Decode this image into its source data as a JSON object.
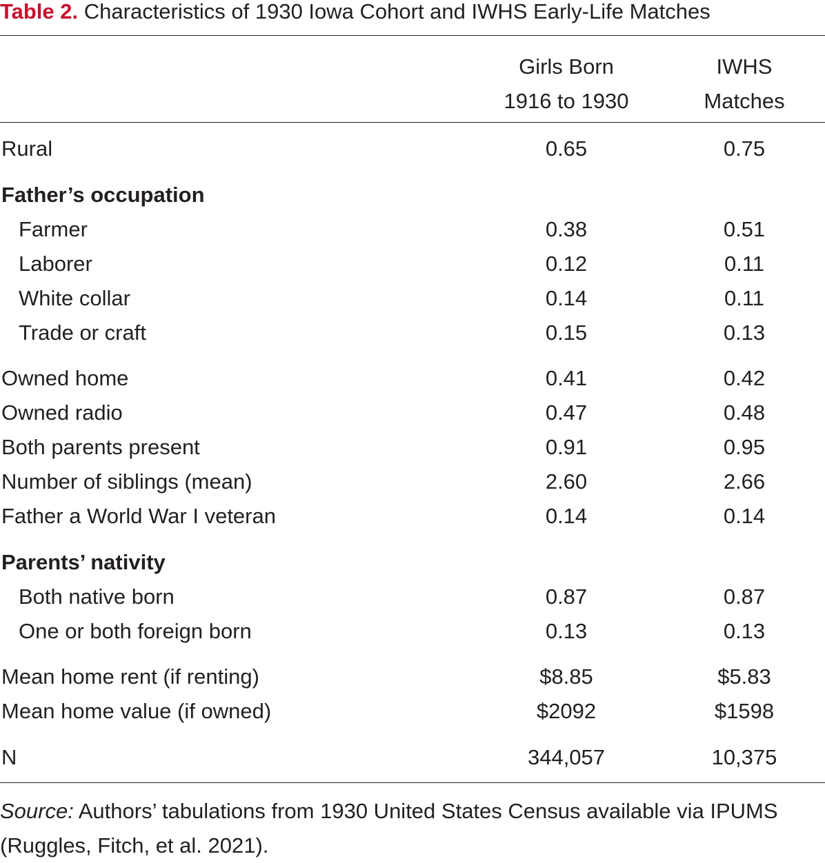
{
  "caption": {
    "label": "Table 2.",
    "title": "Characteristics of 1930 Iowa Cohort and IWHS Early-Life Matches"
  },
  "columns": {
    "col1": {
      "line1": "Girls Born",
      "line2": "1916 to 1930"
    },
    "col2": {
      "line1": "IWHS",
      "line2": "Matches"
    }
  },
  "rows": [
    {
      "label": "Rural",
      "v1": "0.65",
      "v2": "0.75"
    },
    {
      "label": "Father’s occupation",
      "v1": "",
      "v2": ""
    },
    {
      "label": "Farmer",
      "v1": "0.38",
      "v2": "0.51"
    },
    {
      "label": "Laborer",
      "v1": "0.12",
      "v2": "0.11"
    },
    {
      "label": "White collar",
      "v1": "0.14",
      "v2": "0.11"
    },
    {
      "label": "Trade or craft",
      "v1": "0.15",
      "v2": "0.13"
    },
    {
      "label": "Owned home",
      "v1": "0.41",
      "v2": "0.42"
    },
    {
      "label": "Owned radio",
      "v1": "0.47",
      "v2": "0.48"
    },
    {
      "label": "Both parents present",
      "v1": "0.91",
      "v2": "0.95"
    },
    {
      "label": "Number of siblings (mean)",
      "v1": "2.60",
      "v2": "2.66"
    },
    {
      "label": "Father a World War I veteran",
      "v1": "0.14",
      "v2": "0.14"
    },
    {
      "label": "Parents’ nativity",
      "v1": "",
      "v2": ""
    },
    {
      "label": "Both native born",
      "v1": "0.87",
      "v2": "0.87"
    },
    {
      "label": "One or both foreign born",
      "v1": "0.13",
      "v2": "0.13"
    },
    {
      "label": "Mean home rent (if renting)",
      "v1": "$8.85",
      "v2": "$5.83"
    },
    {
      "label": "Mean home value (if owned)",
      "v1": "$2092",
      "v2": "$1598"
    },
    {
      "label": "N",
      "v1": "344,057",
      "v2": "10,375"
    }
  ],
  "source": {
    "label": "Source:",
    "text": " Authors’ tabulations from 1930 United States Census available via IPUMS (Ruggles, Fitch, et al. 2021)."
  },
  "colors": {
    "accent": "#c8102e",
    "text": "#231f20"
  }
}
